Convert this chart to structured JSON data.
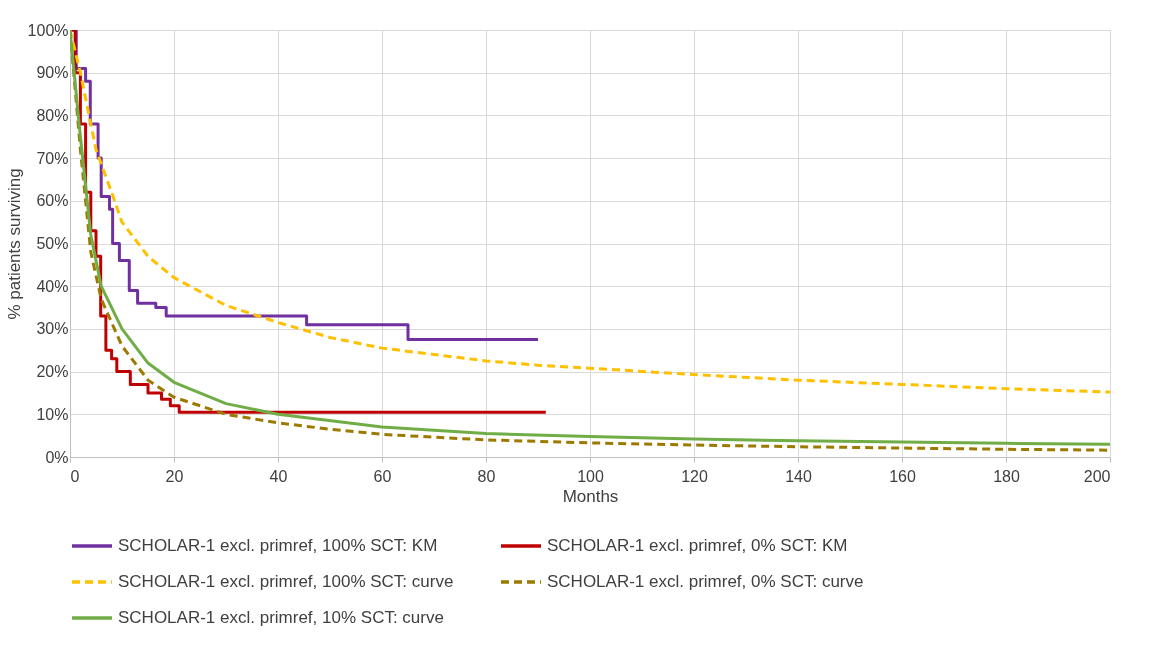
{
  "chart_data": {
    "type": "line",
    "xlabel": "Months",
    "ylabel": "% patients surviving",
    "xlim": [
      0,
      200
    ],
    "xticks": [
      0,
      20,
      40,
      60,
      80,
      100,
      120,
      140,
      160,
      180,
      200
    ],
    "ylim": [
      0,
      100
    ],
    "yticks": [
      {
        "value": 0,
        "label": "0%"
      },
      {
        "value": 10,
        "label": "10%"
      },
      {
        "value": 20,
        "label": "20%"
      },
      {
        "value": 30,
        "label": "30%"
      },
      {
        "value": 40,
        "label": "40%"
      },
      {
        "value": 50,
        "label": "50%"
      },
      {
        "value": 60,
        "label": "60%"
      },
      {
        "value": 70,
        "label": "70%"
      },
      {
        "value": 80,
        "label": "80%"
      },
      {
        "value": 90,
        "label": "90%"
      },
      {
        "value": 100,
        "label": "100%"
      }
    ],
    "grid": true,
    "legend": "bottom",
    "series": [
      {
        "name": "SCHOLAR-1 excl. primref, 100% SCT: KM",
        "type": "step",
        "color": "#7030a0",
        "line_style": "solid",
        "x": [
          0,
          1.2,
          3,
          3.9,
          5.4,
          6,
          7.6,
          8.2,
          9.5,
          11.4,
          13,
          16.5,
          18.5,
          45.5,
          65,
          90
        ],
        "values": [
          100,
          91,
          88,
          78,
          70,
          61,
          58,
          50,
          46,
          39,
          36,
          35,
          33,
          31,
          27.5,
          27.5
        ]
      },
      {
        "name": "SCHOLAR-1 excl. primref, 0% SCT: KM",
        "type": "step",
        "color": "#c00000",
        "line_style": "solid",
        "x": [
          0,
          1,
          2,
          3,
          4,
          5,
          5.9,
          6.9,
          8,
          9,
          11.6,
          15,
          17.6,
          19.3,
          21,
          91.5
        ],
        "values": [
          100,
          90,
          78,
          62,
          53,
          47,
          33,
          25,
          23,
          20,
          17,
          15,
          13.5,
          12,
          10.5,
          10.5
        ]
      },
      {
        "name": "SCHOLAR-1 excl. primref, 100% SCT: curve",
        "type": "line",
        "color": "#ffc000",
        "line_style": "dashed",
        "x": [
          0,
          2,
          5,
          8,
          10,
          15,
          20,
          30,
          40,
          50,
          60,
          70,
          80,
          90,
          100,
          120,
          140,
          160,
          180,
          200
        ],
        "values": [
          100,
          90,
          72,
          62,
          55,
          47,
          42,
          35.5,
          31.5,
          28,
          25.5,
          24,
          22.5,
          21.5,
          20.8,
          19.3,
          18,
          17,
          16,
          15.2
        ]
      },
      {
        "name": "SCHOLAR-1 excl. primref, 0% SCT: curve",
        "type": "line",
        "color": "#9c7a00",
        "line_style": "dashed",
        "x": [
          0,
          2,
          4,
          6,
          10,
          15,
          20,
          30,
          40,
          50,
          60,
          80,
          100,
          120,
          140,
          160,
          180,
          200
        ],
        "values": [
          100,
          72,
          48,
          37,
          26,
          18,
          14,
          10,
          8,
          6.5,
          5.3,
          4,
          3.3,
          2.8,
          2.4,
          2.1,
          1.8,
          1.6
        ]
      },
      {
        "name": "SCHOLAR-1 excl. primref, 10% SCT: curve",
        "type": "line",
        "color": "#70ad47",
        "line_style": "solid",
        "x": [
          0,
          2,
          4,
          6,
          10,
          15,
          20,
          30,
          40,
          60,
          80,
          100,
          120,
          140,
          160,
          180,
          200
        ],
        "values": [
          100,
          75,
          52,
          40,
          30,
          22,
          17.5,
          12.5,
          10,
          7,
          5.5,
          4.8,
          4.2,
          3.8,
          3.5,
          3.2,
          3
        ]
      }
    ]
  }
}
